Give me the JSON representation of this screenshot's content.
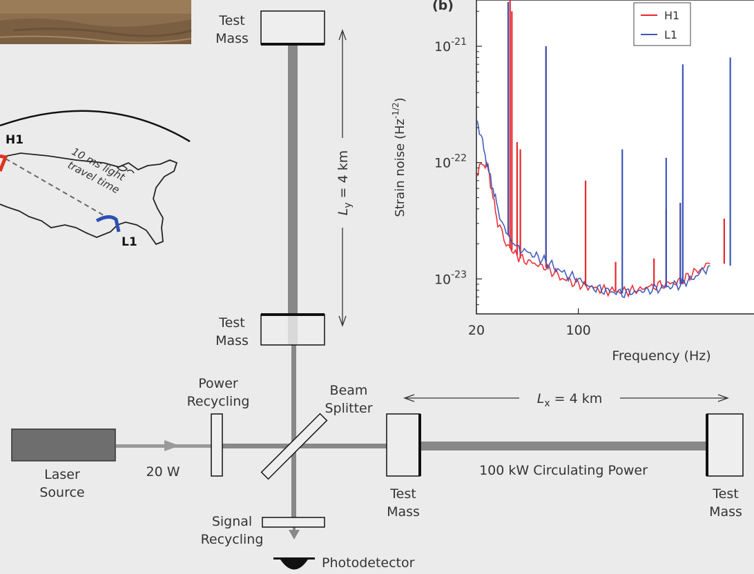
{
  "diagram": {
    "labels": {
      "test_mass_top": [
        "Test",
        "Mass"
      ],
      "test_mass_mid": [
        "Test",
        "Mass"
      ],
      "test_mass_x_inner": [
        "Test",
        "Mass"
      ],
      "test_mass_x_end": [
        "Test",
        "Mass"
      ],
      "ly_length": "L_y = 4 km",
      "lx_length": "L_x = 4 km",
      "power_recycling": [
        "Power",
        "Recycling"
      ],
      "beam_splitter": [
        "Beam",
        "Splitter"
      ],
      "laser_source": [
        "Laser",
        "Source"
      ],
      "laser_power": "20 W",
      "circulating_power": "100 kW Circulating Power",
      "signal_recycling": [
        "Signal",
        "Recycling"
      ],
      "photodetector": "Photodetector"
    },
    "map": {
      "site_h1": "H1",
      "site_l1": "L1",
      "travel_time": [
        "10 ms light",
        "travel time"
      ]
    }
  },
  "chart_data": {
    "type": "line",
    "panel_label": "(b)",
    "xlabel": "Frequency (Hz)",
    "ylabel": "Strain noise (Hz^-1/2)",
    "xscale": "log",
    "yscale": "log",
    "xlim": [
      20,
      1600
    ],
    "ylim": [
      5e-24,
      2.5e-21
    ],
    "x_ticks": [
      {
        "value": 20,
        "label": "20"
      },
      {
        "value": 100,
        "label": "100"
      }
    ],
    "y_ticks": [
      {
        "value": 1e-21,
        "label": "10^-21"
      },
      {
        "value": 1e-22,
        "label": "10^-22"
      },
      {
        "value": 1e-23,
        "label": "10^-23"
      }
    ],
    "legend": {
      "position": "top-right"
    },
    "series": [
      {
        "name": "H1",
        "color": "#e8262a",
        "x": [
          20,
          22,
          24,
          26,
          28,
          32,
          36,
          40,
          50,
          60,
          70,
          80,
          100,
          120,
          150,
          200,
          250,
          300,
          400,
          500,
          600,
          800
        ],
        "y": [
          8e-23,
          1e-22,
          9e-23,
          5e-23,
          3e-23,
          2e-23,
          1.7e-23,
          1.5e-23,
          1.35e-23,
          1.25e-23,
          1.1e-23,
          1e-23,
          9e-24,
          8.5e-24,
          8e-24,
          7.8e-24,
          8e-24,
          8.5e-24,
          9e-24,
          9.5e-24,
          1.1e-23,
          1.35e-23
        ],
        "peaks": [
          {
            "x": 34,
            "y": 2.5e-21
          },
          {
            "x": 35,
            "y": 2e-21
          },
          {
            "x": 38,
            "y": 1.5e-22
          },
          {
            "x": 40,
            "y": 1.3e-22
          },
          {
            "x": 60,
            "y": 1e-21
          },
          {
            "x": 112,
            "y": 7e-23
          },
          {
            "x": 180,
            "y": 1.4e-23
          },
          {
            "x": 330,
            "y": 1.5e-23
          },
          {
            "x": 400,
            "y": 4e-23
          },
          {
            "x": 500,
            "y": 4.5e-23
          },
          {
            "x": 1000,
            "y": 3.3e-23
          }
        ]
      },
      {
        "name": "L1",
        "color": "#3a55b8",
        "x": [
          20,
          22,
          24,
          26,
          28,
          32,
          36,
          40,
          50,
          60,
          70,
          80,
          100,
          120,
          150,
          200,
          250,
          300,
          400,
          500,
          600,
          800
        ],
        "y": [
          2.4e-22,
          1.5e-22,
          9e-23,
          6e-23,
          4e-23,
          2.5e-23,
          2e-23,
          1.8e-23,
          1.6e-23,
          1.4e-23,
          1.25e-23,
          1.1e-23,
          1e-23,
          8.5e-24,
          8e-24,
          7.5e-24,
          7.8e-24,
          8e-24,
          8.5e-24,
          9e-24,
          1e-23,
          1.3e-23
        ],
        "peaks": [
          {
            "x": 33,
            "y": 2.4e-21
          },
          {
            "x": 60,
            "y": 1e-21
          },
          {
            "x": 200,
            "y": 1.3e-22
          },
          {
            "x": 400,
            "y": 1.1e-22
          },
          {
            "x": 500,
            "y": 4.5e-23
          },
          {
            "x": 520,
            "y": 7e-22
          },
          {
            "x": 1100,
            "y": 8e-22
          }
        ]
      }
    ]
  }
}
